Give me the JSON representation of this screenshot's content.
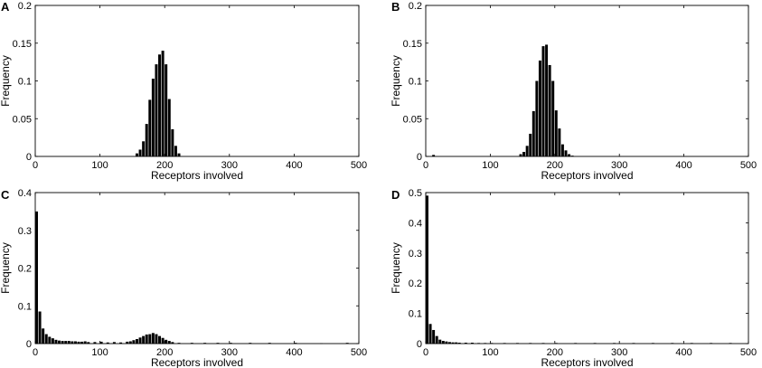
{
  "chart_data": [
    {
      "panel": "A",
      "type": "bar",
      "xlabel": "Receptors involved",
      "ylabel": "Frequency",
      "xlim": [
        0,
        500
      ],
      "ylim": [
        0,
        0.2
      ],
      "xticks": [
        "0",
        "100",
        "200",
        "300",
        "400",
        "500"
      ],
      "yticks": [
        "0",
        "0.05",
        "0.1",
        "0.15",
        "0.2"
      ],
      "grid": false,
      "bin_width": 5,
      "x": [
        155,
        160,
        165,
        170,
        175,
        180,
        185,
        190,
        195,
        200,
        205,
        210,
        215,
        220
      ],
      "values": [
        0.004,
        0.009,
        0.02,
        0.043,
        0.075,
        0.103,
        0.122,
        0.135,
        0.14,
        0.122,
        0.076,
        0.036,
        0.014,
        0.004
      ]
    },
    {
      "panel": "B",
      "type": "bar",
      "xlabel": "Receptors involved",
      "ylabel": "Frequency",
      "xlim": [
        0,
        500
      ],
      "ylim": [
        0,
        0.2
      ],
      "xticks": [
        "0",
        "100",
        "200",
        "300",
        "400",
        "500"
      ],
      "yticks": [
        "0",
        "0.05",
        "0.1",
        "0.15",
        "0.2"
      ],
      "grid": false,
      "bin_width": 5,
      "x": [
        10,
        145,
        150,
        155,
        160,
        165,
        170,
        175,
        180,
        185,
        190,
        195,
        200,
        205,
        210,
        215,
        220,
        225
      ],
      "values": [
        0.002,
        0.003,
        0.006,
        0.014,
        0.03,
        0.06,
        0.1,
        0.127,
        0.146,
        0.148,
        0.121,
        0.1,
        0.061,
        0.037,
        0.016,
        0.008,
        0.003,
        0.001
      ]
    },
    {
      "panel": "C",
      "type": "bar",
      "xlabel": "Receptors involved",
      "ylabel": "Frequency",
      "xlim": [
        0,
        500
      ],
      "ylim": [
        0,
        0.4
      ],
      "xticks": [
        "0",
        "100",
        "200",
        "300",
        "400",
        "500"
      ],
      "yticks": [
        "0",
        "0.1",
        "0.2",
        "0.3",
        "0.4"
      ],
      "grid": false,
      "bin_width": 5,
      "x": [
        0,
        5,
        10,
        15,
        20,
        25,
        30,
        35,
        40,
        45,
        50,
        55,
        60,
        65,
        70,
        75,
        80,
        90,
        100,
        110,
        120,
        130,
        140,
        145,
        150,
        155,
        160,
        165,
        170,
        175,
        180,
        185,
        190,
        195,
        200,
        205,
        210,
        220,
        240,
        260,
        280,
        300,
        330,
        360,
        400,
        440,
        480
      ],
      "values": [
        0.35,
        0.085,
        0.04,
        0.025,
        0.018,
        0.014,
        0.01,
        0.008,
        0.007,
        0.007,
        0.007,
        0.006,
        0.006,
        0.005,
        0.005,
        0.006,
        0.004,
        0.004,
        0.005,
        0.003,
        0.004,
        0.003,
        0.005,
        0.006,
        0.009,
        0.012,
        0.016,
        0.02,
        0.024,
        0.025,
        0.028,
        0.025,
        0.02,
        0.015,
        0.01,
        0.007,
        0.004,
        0.002,
        0.002,
        0.002,
        0.002,
        0.002,
        0.002,
        0.002,
        0.002,
        0.001,
        0.002
      ]
    },
    {
      "panel": "D",
      "type": "bar",
      "xlabel": "Receptors involved",
      "ylabel": "Frequency",
      "xlim": [
        0,
        500
      ],
      "ylim": [
        0,
        0.5
      ],
      "xticks": [
        "0",
        "100",
        "200",
        "300",
        "400",
        "500"
      ],
      "yticks": [
        "0",
        "0.1",
        "0.2",
        "0.3",
        "0.4",
        "0.5"
      ],
      "grid": false,
      "bin_width": 5,
      "x": [
        0,
        5,
        10,
        15,
        20,
        25,
        30,
        35,
        40,
        45,
        50,
        60,
        70,
        80,
        90,
        100,
        120,
        140,
        160,
        180,
        200,
        230,
        260,
        290,
        320,
        350,
        380,
        410,
        440,
        470
      ],
      "values": [
        0.49,
        0.065,
        0.045,
        0.025,
        0.013,
        0.009,
        0.007,
        0.005,
        0.004,
        0.004,
        0.003,
        0.003,
        0.003,
        0.002,
        0.002,
        0.002,
        0.002,
        0.002,
        0.002,
        0.002,
        0.002,
        0.002,
        0.002,
        0.002,
        0.002,
        0.002,
        0.002,
        0.002,
        0.002,
        0.002
      ]
    }
  ]
}
